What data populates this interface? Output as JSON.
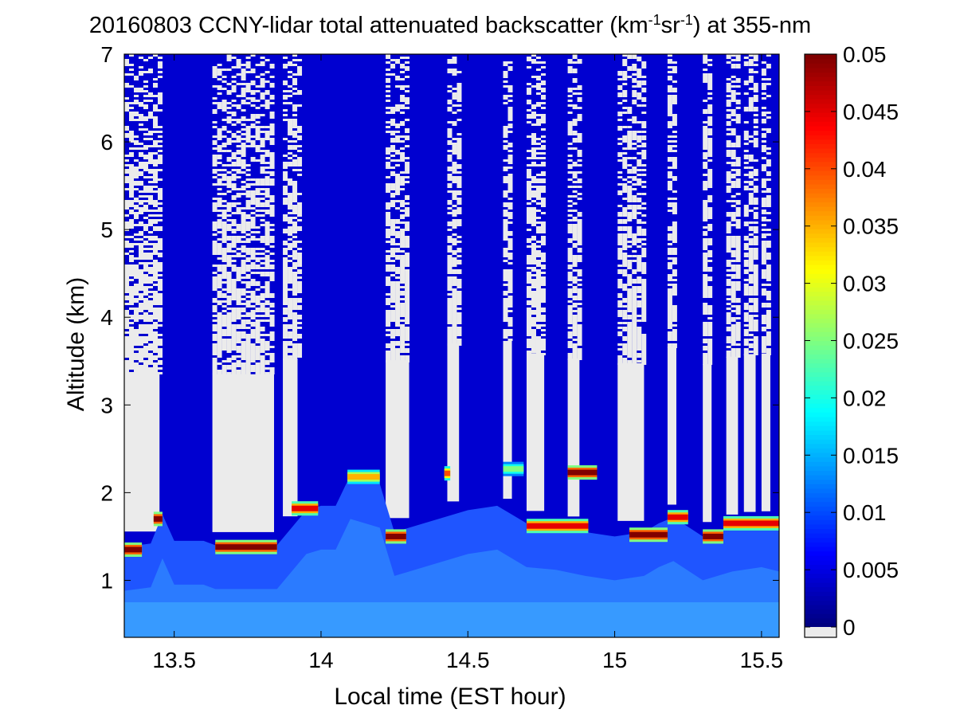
{
  "chart_data": {
    "type": "heatmap",
    "title": {
      "prefix": "20160803 CCNY-lidar total attenuated backscatter (km",
      "sup1": "-1",
      "middle": "sr",
      "sup2": "-1",
      "suffix": ") at 355-nm"
    },
    "xlabel": "Local time (EST hour)",
    "ylabel": "Altitude (km)",
    "xlim": [
      13.33,
      15.56
    ],
    "ylim": [
      0.35,
      7.0
    ],
    "xticks": [
      13.5,
      14,
      14.5,
      15,
      15.5
    ],
    "xtick_labels": [
      "13.5",
      "14",
      "14.5",
      "15",
      "15.5"
    ],
    "yticks": [
      1,
      2,
      3,
      4,
      5,
      6,
      7
    ],
    "ytick_labels": [
      "1",
      "2",
      "3",
      "4",
      "5",
      "6",
      "7"
    ],
    "colorbar": {
      "min": 0,
      "max": 0.05,
      "ticks": [
        0,
        0.005,
        0.01,
        0.015,
        0.02,
        0.025,
        0.03,
        0.035,
        0.04,
        0.045,
        0.05
      ],
      "tick_labels": [
        "0",
        "0.005",
        "0.01",
        "0.015",
        "0.02",
        "0.025",
        "0.03",
        "0.035",
        "0.04",
        "0.045",
        "0.05"
      ],
      "colormap": "jet",
      "below_min_color": "#ebebeb"
    },
    "colors": {
      "no_signal": "#ebebeb",
      "background_blue": "#0000d0",
      "cloud_peak": "#800000"
    },
    "clear_sky_periods": [
      [
        13.33,
        13.45
      ],
      [
        13.63,
        13.84
      ],
      [
        13.87,
        13.92
      ],
      [
        14.22,
        14.3
      ],
      [
        14.43,
        14.47
      ],
      [
        14.62,
        14.65
      ],
      [
        14.7,
        14.76
      ],
      [
        14.84,
        14.88
      ],
      [
        15.01,
        15.1
      ],
      [
        15.18,
        15.21
      ],
      [
        15.3,
        15.33
      ],
      [
        15.38,
        15.42
      ],
      [
        15.44,
        15.48
      ],
      [
        15.5,
        15.53
      ]
    ],
    "boundary_layer_top_km": [
      [
        13.33,
        1.38
      ],
      [
        13.42,
        1.42
      ],
      [
        13.46,
        1.75
      ],
      [
        13.5,
        1.45
      ],
      [
        13.6,
        1.45
      ],
      [
        13.64,
        1.4
      ],
      [
        13.75,
        1.4
      ],
      [
        13.85,
        1.4
      ],
      [
        13.9,
        1.6
      ],
      [
        13.95,
        1.8
      ],
      [
        14.0,
        1.85
      ],
      [
        14.05,
        1.85
      ],
      [
        14.1,
        2.2
      ],
      [
        14.15,
        2.15
      ],
      [
        14.2,
        2.1
      ],
      [
        14.25,
        1.55
      ],
      [
        14.3,
        1.6
      ],
      [
        14.4,
        1.7
      ],
      [
        14.5,
        1.8
      ],
      [
        14.6,
        1.85
      ],
      [
        14.7,
        1.65
      ],
      [
        14.8,
        1.62
      ],
      [
        14.9,
        1.55
      ],
      [
        15.0,
        1.5
      ],
      [
        15.1,
        1.55
      ],
      [
        15.15,
        1.65
      ],
      [
        15.2,
        1.72
      ],
      [
        15.3,
        1.5
      ],
      [
        15.4,
        1.6
      ],
      [
        15.5,
        1.65
      ],
      [
        15.56,
        1.6
      ]
    ],
    "cloud_layers": [
      {
        "x": [
          13.33,
          13.39
        ],
        "alt_km": 1.35,
        "value": 0.05
      },
      {
        "x": [
          13.43,
          13.46
        ],
        "alt_km": 1.7,
        "value": 0.05
      },
      {
        "x": [
          13.64,
          13.85
        ],
        "alt_km": 1.38,
        "value": 0.05
      },
      {
        "x": [
          13.9,
          13.99
        ],
        "alt_km": 1.82,
        "value": 0.045
      },
      {
        "x": [
          14.09,
          14.2
        ],
        "alt_km": 2.18,
        "value": 0.035
      },
      {
        "x": [
          14.22,
          14.29
        ],
        "alt_km": 1.5,
        "value": 0.05
      },
      {
        "x": [
          14.42,
          14.44
        ],
        "alt_km": 2.22,
        "value": 0.04
      },
      {
        "x": [
          14.62,
          14.69
        ],
        "alt_km": 2.27,
        "value": 0.025
      },
      {
        "x": [
          14.7,
          14.91
        ],
        "alt_km": 1.62,
        "value": 0.045
      },
      {
        "x": [
          14.84,
          14.94
        ],
        "alt_km": 2.23,
        "value": 0.05
      },
      {
        "x": [
          15.05,
          15.18
        ],
        "alt_km": 1.52,
        "value": 0.05
      },
      {
        "x": [
          15.18,
          15.25
        ],
        "alt_km": 1.72,
        "value": 0.045
      },
      {
        "x": [
          15.3,
          15.37
        ],
        "alt_km": 1.5,
        "value": 0.05
      },
      {
        "x": [
          15.37,
          15.56
        ],
        "alt_km": 1.65,
        "value": 0.045
      }
    ]
  }
}
